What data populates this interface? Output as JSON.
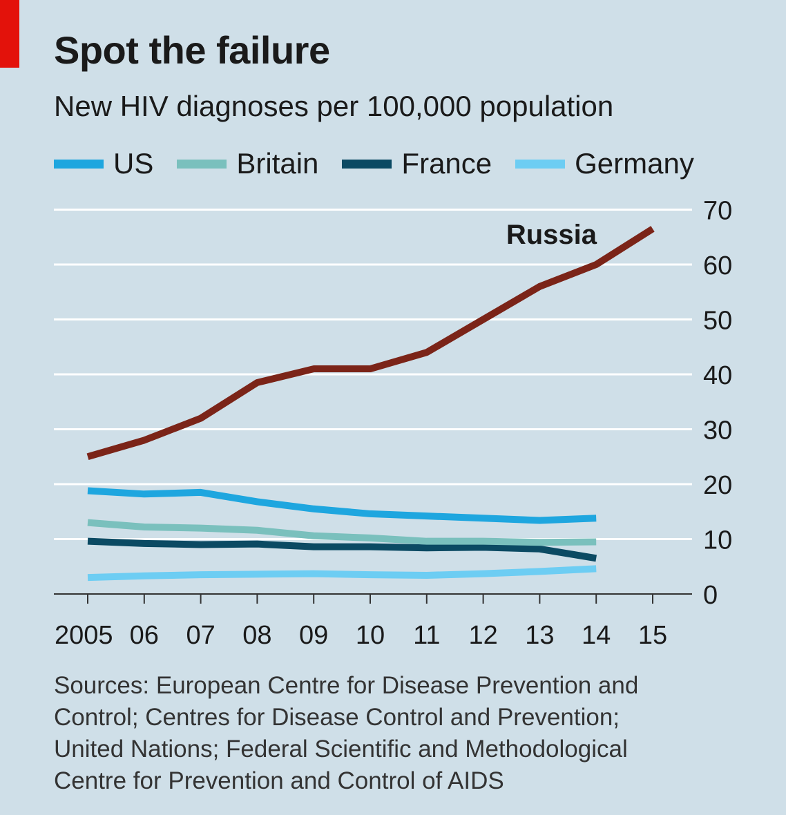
{
  "chart_data": {
    "type": "line",
    "title": "Spot the failure",
    "subtitle": "New HIV diagnoses per 100,000 population",
    "x_labels": [
      "2005",
      "06",
      "07",
      "08",
      "09",
      "10",
      "11",
      "12",
      "13",
      "14",
      "15"
    ],
    "ylim": [
      0,
      70
    ],
    "y_ticks": [
      0,
      10,
      20,
      30,
      40,
      50,
      60,
      70
    ],
    "grid": true,
    "legend_position": "top",
    "series": [
      {
        "name": "Russia",
        "color": "#7b2418",
        "legend": false,
        "label": "Russia",
        "values": [
          25,
          28,
          32,
          38.5,
          41,
          41,
          44,
          50,
          56,
          60,
          66.5
        ]
      },
      {
        "name": "US",
        "color": "#1ea6df",
        "legend": true,
        "values": [
          18.8,
          18.2,
          18.5,
          16.8,
          15.5,
          14.6,
          14.2,
          13.8,
          13.4,
          13.8
        ]
      },
      {
        "name": "Britain",
        "color": "#7ac0bd",
        "legend": true,
        "values": [
          13,
          12.2,
          12,
          11.6,
          10.6,
          10.2,
          9.6,
          9.6,
          9.4,
          9.5
        ]
      },
      {
        "name": "France",
        "color": "#0b4a63",
        "legend": true,
        "values": [
          9.6,
          9.2,
          9,
          9.1,
          8.6,
          8.6,
          8.4,
          8.5,
          8.2,
          6.5
        ]
      },
      {
        "name": "Germany",
        "color": "#6dcdf3",
        "legend": true,
        "values": [
          3,
          3.3,
          3.5,
          3.6,
          3.7,
          3.5,
          3.4,
          3.7,
          4.1,
          4.6
        ]
      }
    ]
  },
  "source": {
    "lines": [
      "Sources: European Centre for Disease Prevention and",
      "Control; Centres for Disease Control and Prevention;",
      "United Nations; Federal Scientific and Methodological",
      "Centre for Prevention and Control of AIDS"
    ]
  }
}
